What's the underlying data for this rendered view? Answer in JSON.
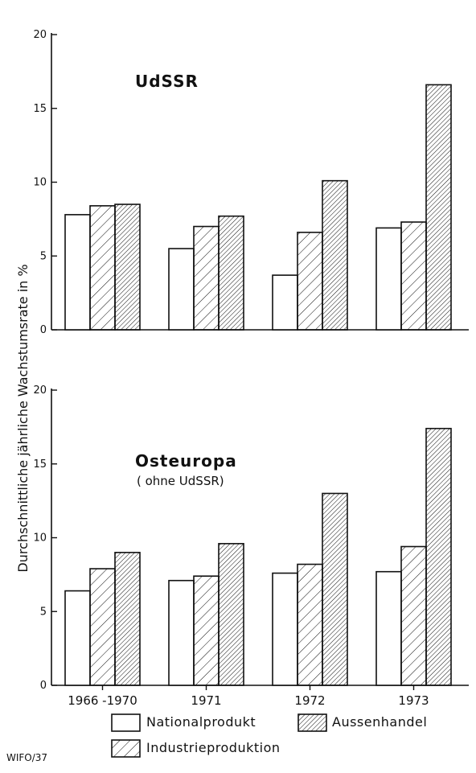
{
  "chart_data": [
    {
      "type": "bar",
      "title": "UdSSR",
      "subtitle": "",
      "categories": [
        "1966 -1970",
        "1971",
        "1972",
        "1973"
      ],
      "series": [
        {
          "name": "Nationalprodukt",
          "values": [
            7.8,
            5.5,
            3.7,
            6.9
          ]
        },
        {
          "name": "Industrieproduktion",
          "values": [
            8.4,
            7.0,
            6.6,
            7.3
          ]
        },
        {
          "name": "Aussenhandel",
          "values": [
            8.5,
            7.7,
            10.1,
            16.6
          ]
        }
      ],
      "ylim": [
        0,
        20
      ],
      "yticks": [
        0,
        5,
        10,
        15,
        20
      ]
    },
    {
      "type": "bar",
      "title": "Osteuropa",
      "subtitle": "( ohne UdSSR)",
      "categories": [
        "1966 -1970",
        "1971",
        "1972",
        "1973"
      ],
      "series": [
        {
          "name": "Nationalprodukt",
          "values": [
            6.4,
            7.1,
            7.6,
            7.7
          ]
        },
        {
          "name": "Industrieproduktion",
          "values": [
            7.9,
            7.4,
            8.2,
            9.4
          ]
        },
        {
          "name": "Aussenhandel",
          "values": [
            9.0,
            9.6,
            13.0,
            17.4
          ]
        }
      ],
      "ylim": [
        0,
        20
      ],
      "yticks": [
        0,
        5,
        10,
        15,
        20
      ]
    }
  ],
  "ylabel": "Durchschnittliche jährliche Wachstumsrate  in %",
  "legend": [
    {
      "name": "Nationalprodukt",
      "pattern": "none"
    },
    {
      "name": "Aussenhandel",
      "pattern": "dense-hatch"
    },
    {
      "name": "Industrieproduktion",
      "pattern": "sparse-hatch"
    }
  ],
  "credit": "WIFO/37",
  "colors": {
    "ink": "#111111",
    "paper": "#ffffff"
  }
}
